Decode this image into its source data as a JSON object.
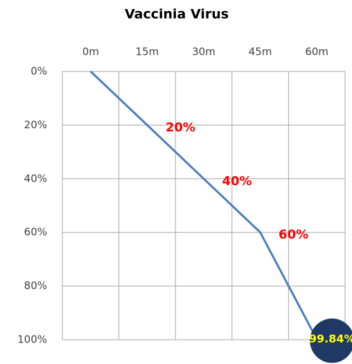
{
  "chart_data": {
    "type": "line",
    "title": "Vaccinia Virus",
    "categories": [
      "0m",
      "15m",
      "30m",
      "45m",
      "60m"
    ],
    "series": [
      {
        "name": "Vaccinia Virus",
        "color": "#4a7ebb",
        "values": [
          0,
          20,
          40,
          60,
          99.84
        ],
        "value_labels": [
          null,
          "20%",
          "40%",
          "60%",
          "99.84%"
        ]
      }
    ],
    "ylim": [
      0,
      100
    ],
    "y_inverted": true,
    "yticks": [
      {
        "value": 0,
        "label": "0%"
      },
      {
        "value": 20,
        "label": "20%"
      },
      {
        "value": 40,
        "label": "40%"
      },
      {
        "value": 60,
        "label": "60%"
      },
      {
        "value": 80,
        "label": "80%"
      },
      {
        "value": 100,
        "label": "100%"
      }
    ],
    "x_axis_position": "top",
    "grid": true
  }
}
